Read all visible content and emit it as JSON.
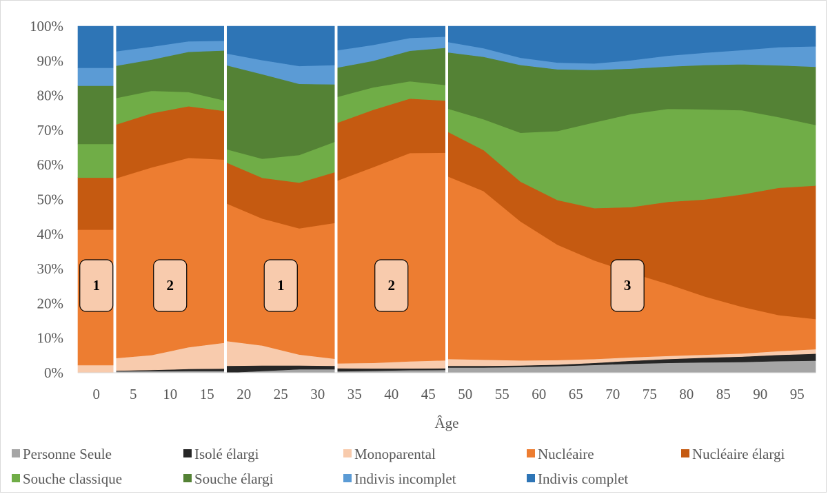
{
  "chart_data": {
    "type": "area",
    "subtype": "100% stacked column-area, segmented by phase",
    "xlabel": "Âge",
    "ylim": [
      0,
      1
    ],
    "y_ticks": [
      "0%",
      "10%",
      "20%",
      "30%",
      "40%",
      "50%",
      "60%",
      "70%",
      "80%",
      "90%",
      "100%"
    ],
    "x_ticks": [
      "0",
      "5",
      "10",
      "15",
      "20",
      "25",
      "30",
      "35",
      "40",
      "45",
      "50",
      "55",
      "60",
      "65",
      "70",
      "75",
      "80",
      "85",
      "90",
      "95"
    ],
    "x": [
      0,
      5,
      10,
      15,
      20,
      25,
      30,
      35,
      40,
      45,
      50,
      55,
      60,
      65,
      70,
      75,
      80,
      85,
      90,
      95
    ],
    "legend_position": "bottom",
    "separators_after_age": [
      0,
      15,
      30,
      45
    ],
    "phase_labels": [
      {
        "label": "1",
        "age_center": 0
      },
      {
        "label": "2",
        "age_center": 10
      },
      {
        "label": "1",
        "age_center": 25
      },
      {
        "label": "2",
        "age_center": 40
      },
      {
        "label": "3",
        "age_center": 72
      }
    ],
    "series": [
      {
        "name": "Personne Seule",
        "color": "#a5a5a5",
        "cum_top": [
          0.0,
          0.004,
          0.005,
          0.005,
          0.0,
          0.01,
          0.01,
          0.004,
          0.007,
          0.008,
          0.015,
          0.015,
          0.018,
          0.02,
          0.025,
          0.027,
          0.03,
          0.03,
          0.032,
          0.035
        ]
      },
      {
        "name": "Isolé élargi",
        "color": "#262626",
        "cum_top": [
          0.0,
          0.006,
          0.01,
          0.012,
          0.02,
          0.022,
          0.02,
          0.013,
          0.012,
          0.013,
          0.02,
          0.02,
          0.022,
          0.025,
          0.032,
          0.037,
          0.042,
          0.045,
          0.048,
          0.055
        ]
      },
      {
        "name": "Monoparental",
        "color": "#f8cbad",
        "cum_top": [
          0.022,
          0.042,
          0.06,
          0.087,
          0.092,
          0.065,
          0.04,
          0.027,
          0.03,
          0.036,
          0.04,
          0.035,
          0.036,
          0.037,
          0.042,
          0.047,
          0.05,
          0.054,
          0.057,
          0.068
        ]
      },
      {
        "name": "Nucléaire",
        "color": "#ed7d31",
        "cum_top": [
          0.413,
          0.56,
          0.625,
          0.615,
          0.49,
          0.4,
          0.433,
          0.553,
          0.633,
          0.635,
          0.568,
          0.48,
          0.393,
          0.346,
          0.302,
          0.275,
          0.237,
          0.203,
          0.178,
          0.155
        ]
      },
      {
        "name": "Nucléaire élargi",
        "color": "#c55a11",
        "cum_top": [
          0.563,
          0.715,
          0.783,
          0.755,
          0.608,
          0.517,
          0.58,
          0.72,
          0.797,
          0.785,
          0.697,
          0.588,
          0.515,
          0.482,
          0.468,
          0.488,
          0.498,
          0.502,
          0.527,
          0.54
        ]
      },
      {
        "name": "Souche classique",
        "color": "#70ad47",
        "cum_top": [
          0.66,
          0.792,
          0.835,
          0.785,
          0.646,
          0.589,
          0.668,
          0.795,
          0.852,
          0.83,
          0.763,
          0.7,
          0.685,
          0.71,
          0.735,
          0.758,
          0.765,
          0.755,
          0.76,
          0.715
        ]
      },
      {
        "name": "Souche élargi",
        "color": "#548235",
        "cum_top": [
          0.828,
          0.885,
          0.922,
          0.93,
          0.888,
          0.835,
          0.832,
          0.88,
          0.92,
          0.938,
          0.925,
          0.898,
          0.878,
          0.873,
          0.875,
          0.88,
          0.887,
          0.889,
          0.891,
          0.883
        ]
      },
      {
        "name": "Indivis incomplet",
        "color": "#5b9bd5",
        "cum_top": [
          0.88,
          0.927,
          0.955,
          0.958,
          0.922,
          0.882,
          0.888,
          0.93,
          0.962,
          0.97,
          0.955,
          0.918,
          0.9,
          0.89,
          0.895,
          0.908,
          0.922,
          0.925,
          0.937,
          0.942
        ]
      },
      {
        "name": "Indivis complet",
        "color": "#2e75b6",
        "cum_top": [
          1,
          1,
          1,
          1,
          1,
          1,
          1,
          1,
          1,
          1,
          1,
          1,
          1,
          1,
          1,
          1,
          1,
          1,
          1,
          1
        ]
      }
    ]
  }
}
